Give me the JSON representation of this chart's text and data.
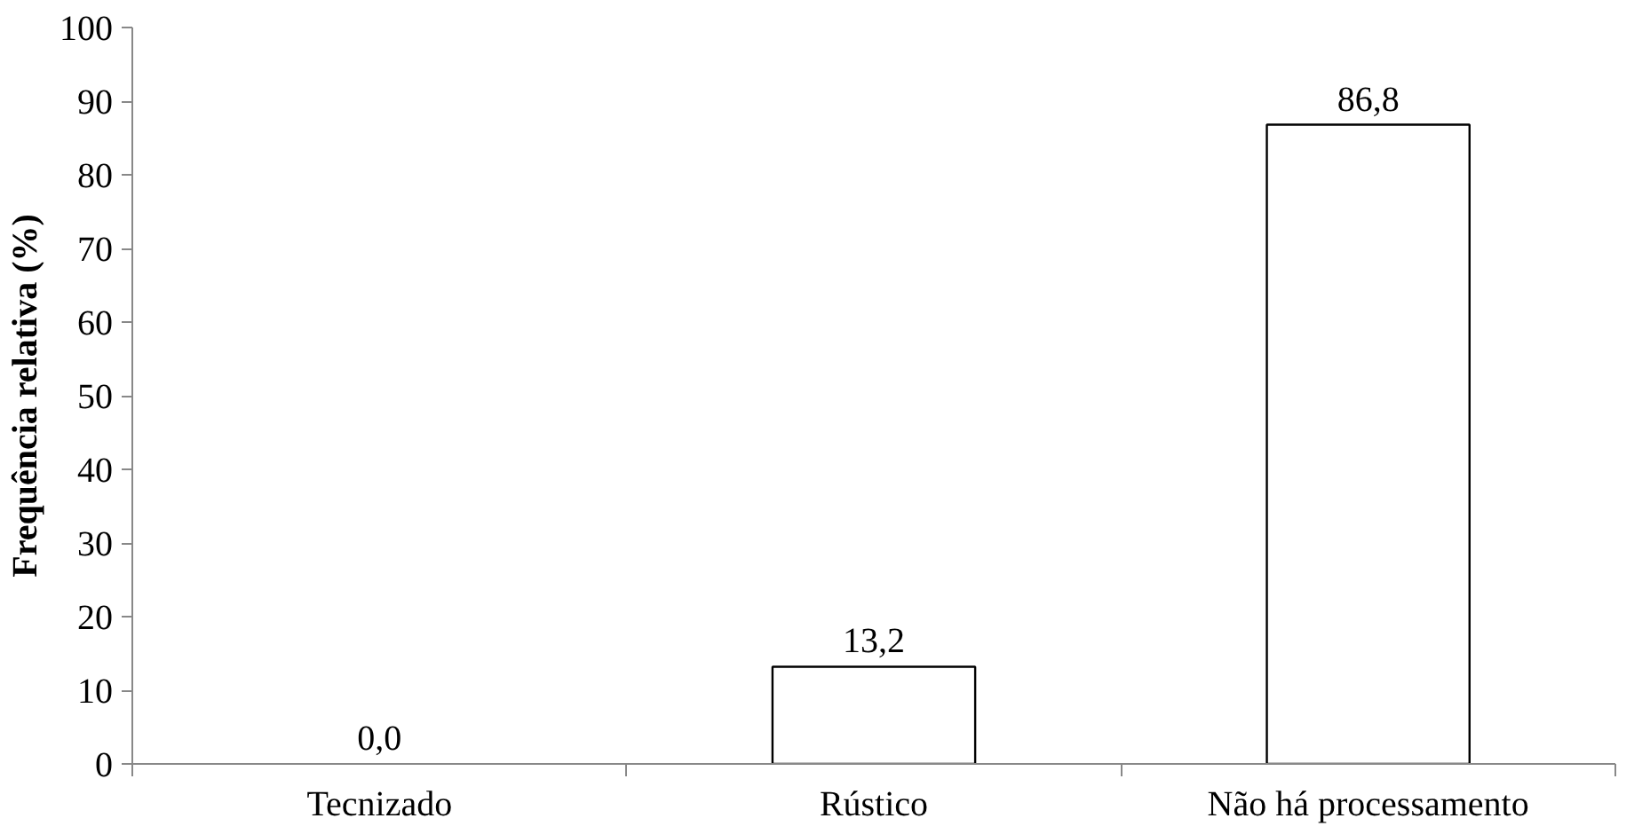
{
  "chart_data": {
    "type": "bar",
    "ylabel": "Frequência relativa (%)",
    "categories": [
      "Tecnizado",
      "Rústico",
      "Não há processamento"
    ],
    "values": [
      0.0,
      13.2,
      86.8
    ],
    "value_labels": [
      "0,0",
      "13,2",
      "86,8"
    ],
    "color": "#ffffff",
    "ylim": [
      0,
      100
    ],
    "yticks": [
      0,
      10,
      20,
      30,
      40,
      50,
      60,
      70,
      80,
      90,
      100
    ],
    "grid": false
  }
}
